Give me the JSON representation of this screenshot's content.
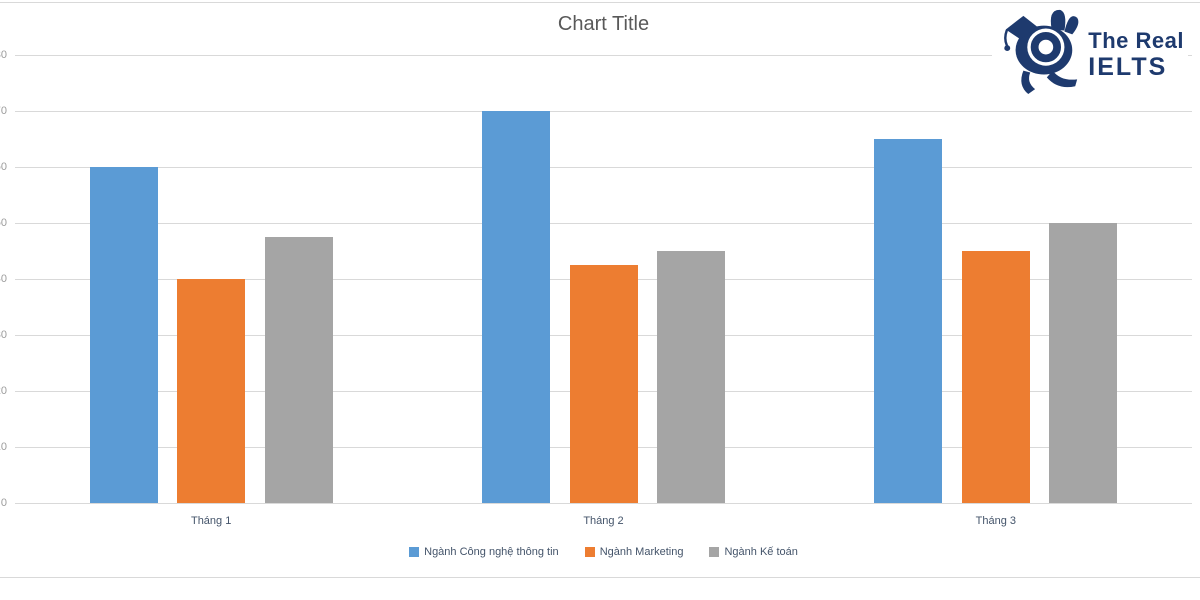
{
  "chart_data": {
    "type": "bar",
    "title": "Chart Title",
    "categories": [
      "Tháng 1",
      "Tháng 2",
      "Tháng 3"
    ],
    "series": [
      {
        "name": "Ngành Công nghệ thông tin",
        "color": "#5b9bd5",
        "values": [
          60,
          70,
          65
        ]
      },
      {
        "name": "Ngành Marketing",
        "color": "#ed7d31",
        "values": [
          40,
          42.5,
          45
        ]
      },
      {
        "name": "Ngành Kế toán",
        "color": "#a5a5a5",
        "values": [
          47.5,
          45,
          50
        ]
      }
    ],
    "xlabel": "",
    "ylabel": "",
    "ylim": [
      0,
      80
    ],
    "ytick_step": 10,
    "ytick_labels_note": "y-axis numbers are clipped at the left image edge; only the right sliver of the last digit is visible",
    "grid": true,
    "legend_position": "bottom"
  },
  "logo": {
    "line1": "The Real",
    "line2": "IELTS",
    "mascot": "mascot-with-graduation-cap-and-magnifying-glass-icon"
  },
  "colors": {
    "gridline": "#d9d9d9",
    "frame_border": "#d9d9d9",
    "title_text": "#595959",
    "axis_text": "#44546a",
    "tick_text": "#9c9c9c",
    "logo_navy": "#1e3a6e",
    "background": "#ffffff"
  }
}
